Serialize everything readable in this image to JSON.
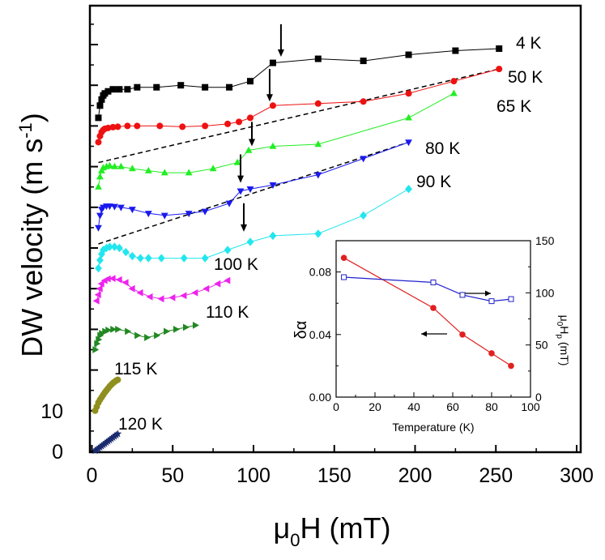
{
  "chart_data": [
    {
      "type": "scatter",
      "panel": "main",
      "ylabel_main": "DW velocity (m s",
      "ylabel_exp": "-1",
      "ylabel_close": ")",
      "xlabel_main": "μ",
      "xlabel_sub": "0",
      "xlabel_rest": "H (mT)",
      "xlim": [
        0,
        300
      ],
      "xticks": [
        0,
        50,
        100,
        150,
        200,
        250,
        300
      ],
      "y_tick_labels": [
        {
          "value": 0,
          "label": "0"
        },
        {
          "value": 10,
          "label": "10"
        }
      ],
      "ylim": [
        0,
        112
      ],
      "y_minor_ticks": [
        20,
        30,
        40,
        50,
        60,
        70,
        80,
        90,
        100
      ],
      "series": [
        {
          "name": "4 K",
          "color": "#000000",
          "marker": "square",
          "x": [
            4,
            5,
            6,
            7,
            8,
            10,
            13,
            17,
            22,
            28,
            40,
            55,
            70,
            85,
            98,
            112,
            140,
            168,
            196,
            225,
            252
          ],
          "y": [
            82,
            85,
            86.5,
            87.5,
            88,
            88.5,
            89,
            89,
            89,
            89.5,
            89.5,
            90,
            89.5,
            89.5,
            91,
            95.5,
            96.5,
            96,
            97.5,
            98.5,
            99
          ]
        },
        {
          "name": "50 K",
          "color": "#ee1111",
          "marker": "circle",
          "x": [
            4,
            5,
            6,
            7,
            8,
            10,
            13,
            16,
            22,
            28,
            42,
            56,
            70,
            84,
            91,
            98,
            112,
            140,
            168,
            196,
            224,
            252
          ],
          "y": [
            76,
            77.5,
            78.5,
            79,
            79.3,
            79.5,
            79.7,
            79.8,
            80,
            80,
            80,
            79.8,
            80,
            80.5,
            81,
            82,
            85,
            85.5,
            86,
            88,
            91,
            94
          ]
        },
        {
          "name": "65 K",
          "color": "#22ee22",
          "marker": "triangle",
          "x": [
            4,
            5,
            6,
            7,
            9,
            11,
            14,
            18,
            25,
            35,
            45,
            60,
            75,
            90,
            97,
            112,
            140,
            196,
            224
          ],
          "y": [
            65,
            67.5,
            69,
            69.7,
            70,
            70.2,
            70,
            70,
            69.5,
            69,
            68.5,
            68.5,
            69.5,
            71,
            74,
            75,
            75.5,
            82,
            88
          ]
        },
        {
          "name": "80 K",
          "color": "#1a1aee",
          "marker": "triangle-down",
          "x": [
            4,
            5,
            6,
            7,
            9,
            11,
            14,
            18,
            25,
            35,
            45,
            60,
            70,
            85,
            92,
            98,
            112,
            140,
            168,
            196
          ],
          "y": [
            55,
            58,
            59.5,
            60,
            60.3,
            60.3,
            60.2,
            60,
            59.5,
            58.5,
            58,
            58.5,
            59,
            61,
            64,
            64.5,
            65.5,
            68,
            72,
            76
          ]
        },
        {
          "name": "90 K",
          "color": "#22e6ee",
          "marker": "diamond",
          "x": [
            4,
            5,
            6,
            7,
            9,
            11,
            14,
            17,
            21,
            25,
            30,
            35,
            43,
            57,
            70,
            84,
            98,
            112,
            140,
            168,
            196
          ],
          "y": [
            45,
            47,
            48.5,
            49.5,
            50,
            50.3,
            50.3,
            50,
            49,
            48,
            47.5,
            47.5,
            47.5,
            47.5,
            47.5,
            49.5,
            51.5,
            53,
            53.5,
            58,
            64.5
          ]
        },
        {
          "name": "100 K",
          "color": "#ee22ee",
          "marker": "triangle-left",
          "x": [
            3,
            4,
            5,
            6,
            8,
            10,
            13,
            17,
            21,
            25,
            30,
            36,
            43,
            50,
            57,
            64,
            71,
            78,
            84
          ],
          "y": [
            37,
            38.5,
            40,
            41.2,
            42,
            42.4,
            42.5,
            42.2,
            41.5,
            40,
            39,
            38,
            37.5,
            37.8,
            38.3,
            39,
            40,
            41.2,
            42
          ]
        },
        {
          "name": "110 K",
          "color": "#228822",
          "marker": "triangle-right",
          "x": [
            2,
            3,
            4,
            5,
            6,
            8,
            10,
            13,
            16,
            22,
            28,
            34,
            40,
            46,
            52,
            58,
            64
          ],
          "y": [
            25,
            26.5,
            27.5,
            28.5,
            29,
            29.5,
            29.8,
            30,
            30,
            29.5,
            28.5,
            28,
            28.5,
            29.5,
            30,
            30.5,
            31
          ]
        },
        {
          "name": "115 K",
          "color": "#8f8f1f",
          "marker": "circle",
          "x": [
            2,
            3,
            4,
            5,
            6,
            7,
            8,
            9,
            10,
            11,
            12,
            13,
            14,
            15,
            16
          ],
          "y": [
            10,
            11,
            12,
            12.7,
            13.3,
            13.9,
            14.5,
            15,
            15.5,
            16,
            16.4,
            16.8,
            17.1,
            17.4,
            17.6
          ]
        },
        {
          "name": "120 K",
          "color": "#1a2a6e",
          "marker": "star",
          "x": [
            2,
            3,
            4,
            5,
            6,
            7,
            8,
            9,
            10,
            11,
            12,
            13,
            14,
            15,
            16
          ],
          "y": [
            0.2,
            0.4,
            0.7,
            1,
            1.3,
            1.6,
            1.9,
            2.2,
            2.5,
            2.8,
            3.1,
            3.4,
            3.7,
            4,
            4.3
          ]
        }
      ],
      "dashed_lines": [
        {
          "x": [
            4,
            252
          ],
          "y": [
            71,
            94
          ]
        },
        {
          "x": [
            4,
            196
          ],
          "y": [
            51,
            76
          ]
        }
      ],
      "annotations": [
        {
          "kind": "arrow",
          "x": 117,
          "y_from": 105,
          "y_to": 97
        },
        {
          "kind": "arrow",
          "x": 110,
          "y_from": 94,
          "y_to": 86
        },
        {
          "kind": "arrow",
          "x": 99,
          "y_from": 81,
          "y_to": 75
        },
        {
          "kind": "arrow",
          "x": 92,
          "y_from": 73,
          "y_to": 66
        },
        {
          "kind": "arrow",
          "x": 94,
          "y_from": 61,
          "y_to": 54
        }
      ]
    },
    {
      "type": "line",
      "panel": "inset",
      "xlabel": "Temperature (K)",
      "ylabel_left": "δα",
      "ylabel_right_main": "μ",
      "ylabel_right_sub1": "0",
      "ylabel_right_mid": "H",
      "ylabel_right_sub2": "p",
      "ylabel_right_unit": " (mT)",
      "xlim": [
        0,
        100
      ],
      "xticks": [
        0,
        20,
        40,
        60,
        80,
        100
      ],
      "ylim_left": [
        0,
        0.1
      ],
      "yticks_left": [
        {
          "value": 0,
          "label": "0.00"
        },
        {
          "value": 0.04,
          "label": "0.04"
        },
        {
          "value": 0.08,
          "label": "0.08"
        }
      ],
      "ylim_right": [
        0,
        150
      ],
      "yticks_right": [
        0,
        50,
        100,
        150
      ],
      "series": [
        {
          "name": "δα",
          "axis": "left",
          "color": "#e02020",
          "marker": "filled-circle",
          "x": [
            4,
            50,
            65,
            80,
            90
          ],
          "y": [
            0.089,
            0.057,
            0.04,
            0.028,
            0.02
          ]
        },
        {
          "name": "μ0Hp",
          "axis": "right",
          "color": "#2020cc",
          "marker": "open-square",
          "x": [
            4,
            50,
            65,
            80,
            90
          ],
          "y": [
            115,
            110,
            98,
            92,
            94
          ]
        }
      ]
    }
  ]
}
